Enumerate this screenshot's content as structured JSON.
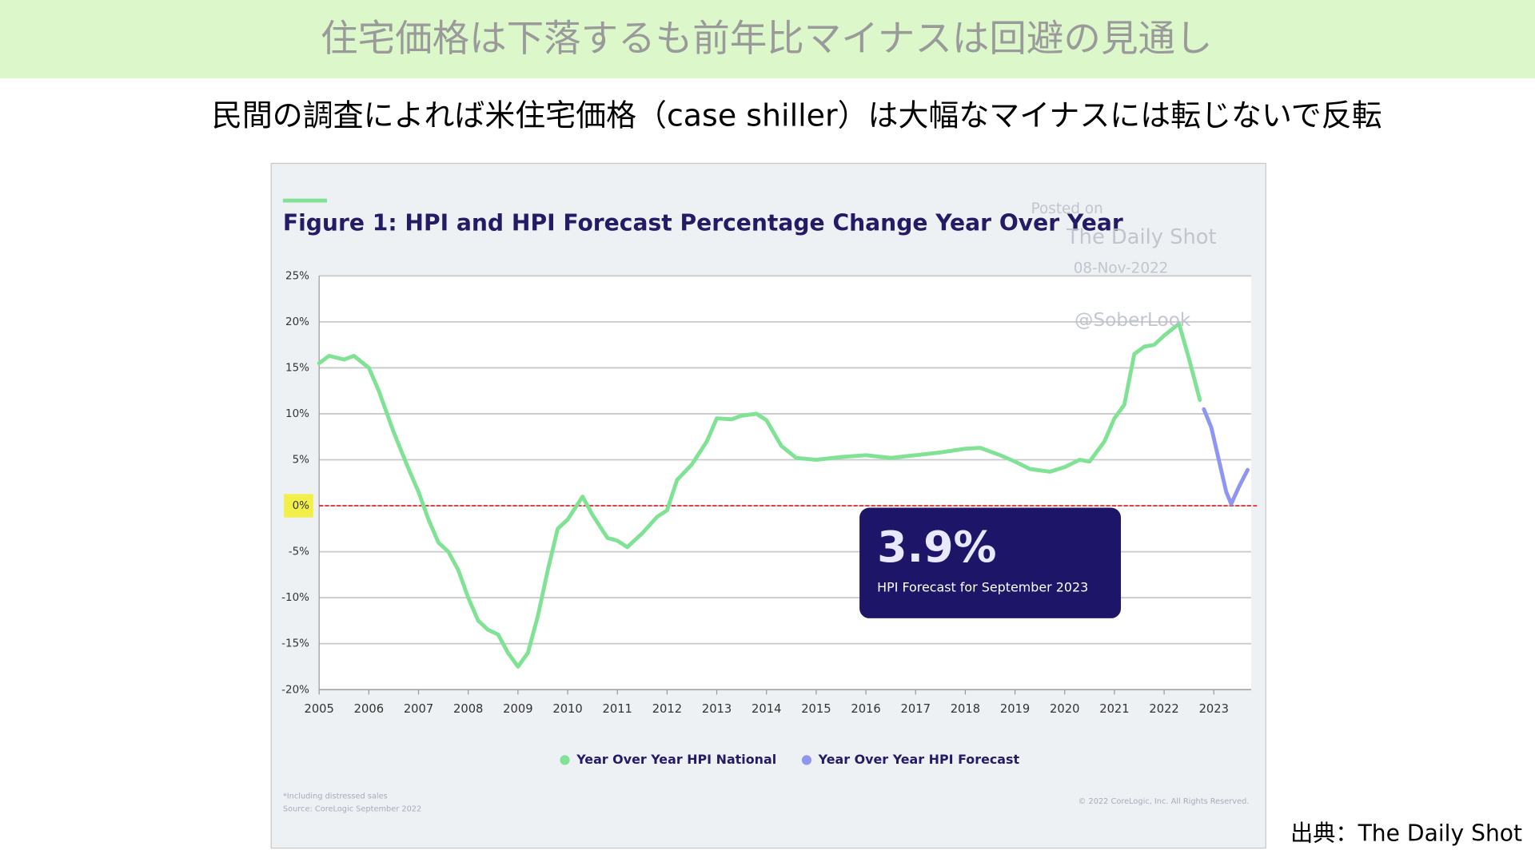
{
  "slide": {
    "title": "住宅価格は下落するも前年比マイナスは回避の見通し",
    "subtitle": "民間の調査によれば米住宅価格（case shiller）は大幅なマイナスには転じないで反転",
    "source": "出典：The Daily Shot"
  },
  "chart_data": {
    "type": "line",
    "title": "Figure 1: HPI and HPI Forecast Percentage Change Year Over Year",
    "watermark": [
      "Posted on",
      "The Daily Shot",
      "08-Nov-2022",
      "@SoberLook"
    ],
    "annotation": {
      "value_label": "3.9%",
      "value": 3.9,
      "text": "HPI Forecast for September 2023"
    },
    "footnotes": [
      "*Including distressed sales",
      "Source: CoreLogic September 2022"
    ],
    "copyright": "© 2022 CoreLogic, Inc. All Rights Reserved.",
    "xlim": [
      2005,
      2023.75
    ],
    "xticks": [
      2005,
      2006,
      2007,
      2008,
      2009,
      2010,
      2011,
      2012,
      2013,
      2014,
      2015,
      2016,
      2017,
      2018,
      2019,
      2020,
      2021,
      2022,
      2023
    ],
    "ylim": [
      -20,
      25
    ],
    "yticks": [
      {
        "value": -20,
        "label": "-20%"
      },
      {
        "value": -15,
        "label": "-15%"
      },
      {
        "value": -10,
        "label": "-10%"
      },
      {
        "value": -5,
        "label": "-5%"
      },
      {
        "value": 0,
        "label": "0%"
      },
      {
        "value": 5,
        "label": "5%"
      },
      {
        "value": 10,
        "label": "10%"
      },
      {
        "value": 15,
        "label": "15%"
      },
      {
        "value": 20,
        "label": "20%"
      },
      {
        "value": 25,
        "label": "25%"
      }
    ],
    "grid": true,
    "reference_line_y": 0,
    "series": [
      {
        "name": "Year Over Year HPI National",
        "color": "#80e294",
        "x": [
          2005.0,
          2005.2,
          2005.5,
          2005.7,
          2006.0,
          2006.2,
          2006.5,
          2006.8,
          2007.0,
          2007.2,
          2007.4,
          2007.6,
          2007.8,
          2008.0,
          2008.2,
          2008.4,
          2008.6,
          2008.8,
          2009.0,
          2009.2,
          2009.4,
          2009.6,
          2009.8,
          2010.0,
          2010.3,
          2010.5,
          2010.8,
          2011.0,
          2011.2,
          2011.5,
          2011.8,
          2012.0,
          2012.2,
          2012.5,
          2012.8,
          2013.0,
          2013.3,
          2013.5,
          2013.8,
          2014.0,
          2014.3,
          2014.6,
          2015.0,
          2015.5,
          2016.0,
          2016.5,
          2017.0,
          2017.5,
          2018.0,
          2018.3,
          2018.7,
          2019.0,
          2019.3,
          2019.7,
          2020.0,
          2020.3,
          2020.5,
          2020.8,
          2021.0,
          2021.2,
          2021.4,
          2021.6,
          2021.8,
          2022.0,
          2022.3,
          2022.5,
          2022.72
        ],
        "values": [
          15.5,
          16.3,
          15.9,
          16.3,
          15.0,
          12.5,
          8,
          4,
          1.5,
          -1.5,
          -4,
          -5,
          -7,
          -10,
          -12.5,
          -13.5,
          -14,
          -16,
          -17.5,
          -16,
          -12,
          -7,
          -2.5,
          -1.5,
          1,
          -1,
          -3.5,
          -3.8,
          -4.5,
          -3,
          -1.2,
          -0.5,
          2.8,
          4.5,
          7,
          9.5,
          9.4,
          9.8,
          10,
          9.3,
          6.5,
          5.2,
          5,
          5.3,
          5.5,
          5.2,
          5.5,
          5.8,
          6.2,
          6.3,
          5.5,
          4.8,
          4,
          3.7,
          4.2,
          5,
          4.8,
          7,
          9.5,
          11,
          16.5,
          17.3,
          17.5,
          18.5,
          19.8,
          16,
          11.5
        ]
      },
      {
        "name": "Year Over Year HPI Forecast",
        "color": "#8f96f2",
        "x": [
          2022.8,
          2022.95,
          2023.1,
          2023.25,
          2023.35,
          2023.5,
          2023.68
        ],
        "values": [
          10.5,
          8.5,
          5,
          1.5,
          0.2,
          2,
          3.9
        ]
      }
    ]
  }
}
